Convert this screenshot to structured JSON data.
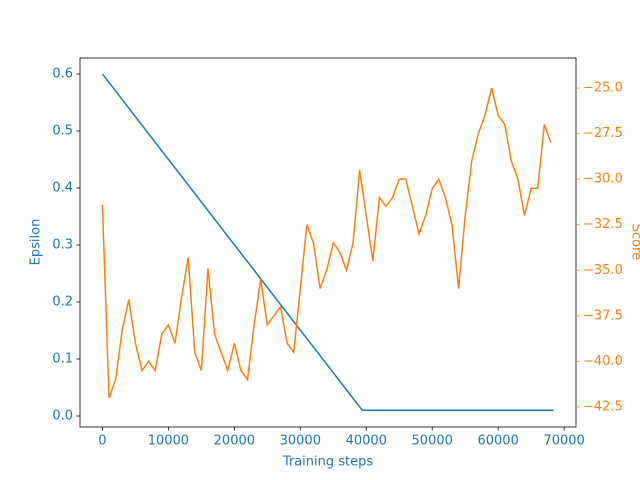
{
  "chart_data": {
    "type": "line",
    "xlabel": "Training steps",
    "ylabel": "Epsilon",
    "y2label": "Score",
    "xlim": [
      -3400,
      71800
    ],
    "ylim": [
      -0.0193,
      0.628
    ],
    "y2lim": [
      -43.6,
      -23.35
    ],
    "xticks": [
      0,
      10000,
      20000,
      30000,
      40000,
      50000,
      60000,
      70000
    ],
    "yticks": [
      {
        "value": 0,
        "label": "0.0"
      },
      {
        "value": 0.1,
        "label": "0.1"
      },
      {
        "value": 0.2,
        "label": "0.2"
      },
      {
        "value": 0.3,
        "label": "0.3"
      },
      {
        "value": 0.4,
        "label": "0.4"
      },
      {
        "value": 0.5,
        "label": "0.5"
      },
      {
        "value": 0.6,
        "label": "0.6"
      }
    ],
    "y2ticks": [
      {
        "value": -42.5,
        "label": "−42.5"
      },
      {
        "value": -40,
        "label": "−40.0"
      },
      {
        "value": -37.5,
        "label": "−37.5"
      },
      {
        "value": -35,
        "label": "−35.0"
      },
      {
        "value": -32.5,
        "label": "−32.5"
      },
      {
        "value": -30,
        "label": "−30.0"
      },
      {
        "value": -27.5,
        "label": "−27.5"
      },
      {
        "value": -25,
        "label": "−25.0"
      }
    ],
    "series": [
      {
        "color": "#1f77b4",
        "axis": "y",
        "x": [
          0,
          39400,
          68400
        ],
        "values": [
          0.6,
          0.01,
          0.01
        ]
      },
      {
        "color": "#ff7f0e",
        "axis": "y2",
        "x": [
          0,
          1000,
          2000,
          3000,
          4000,
          5000,
          6000,
          7000,
          8000,
          9000,
          10000,
          11000,
          12000,
          13000,
          14000,
          15000,
          16000,
          17000,
          18000,
          19000,
          20000,
          21000,
          22000,
          23000,
          24000,
          25000,
          26000,
          27000,
          28000,
          29000,
          30000,
          31000,
          32000,
          33000,
          34000,
          35000,
          36000,
          37000,
          38000,
          39000,
          40000,
          41000,
          42000,
          43000,
          44000,
          45000,
          46000,
          47000,
          48000,
          49000,
          50000,
          51000,
          52000,
          53000,
          54000,
          55000,
          56000,
          57000,
          58000,
          59000,
          60000,
          61000,
          62000,
          63000,
          64000,
          65000,
          66000,
          67000,
          68000
        ],
        "values": [
          -31.4,
          -42.0,
          -41.0,
          -38.3,
          -36.6,
          -39.0,
          -40.5,
          -40.0,
          -40.5,
          -38.5,
          -38.0,
          -39.0,
          -36.5,
          -34.3,
          -39.5,
          -40.5,
          -34.9,
          -38.5,
          -39.5,
          -40.5,
          -39.0,
          -40.5,
          -41.0,
          -38.0,
          -35.5,
          -38.0,
          -37.5,
          -37.0,
          -39.0,
          -39.5,
          -36.0,
          -32.5,
          -33.5,
          -36.0,
          -35.0,
          -33.5,
          -34.0,
          -35.0,
          -33.5,
          -29.5,
          -32.0,
          -34.5,
          -31.0,
          -31.5,
          -31.0,
          -30.0,
          -30.0,
          -31.5,
          -33.0,
          -32.0,
          -30.5,
          -30.0,
          -31.0,
          -32.5,
          -36.0,
          -32.0,
          -29.0,
          -27.5,
          -26.5,
          -25.0,
          -26.5,
          -27.0,
          -29.0,
          -30.0,
          -32.0,
          -30.5,
          -30.5,
          -27.0,
          -28.0
        ]
      }
    ]
  }
}
